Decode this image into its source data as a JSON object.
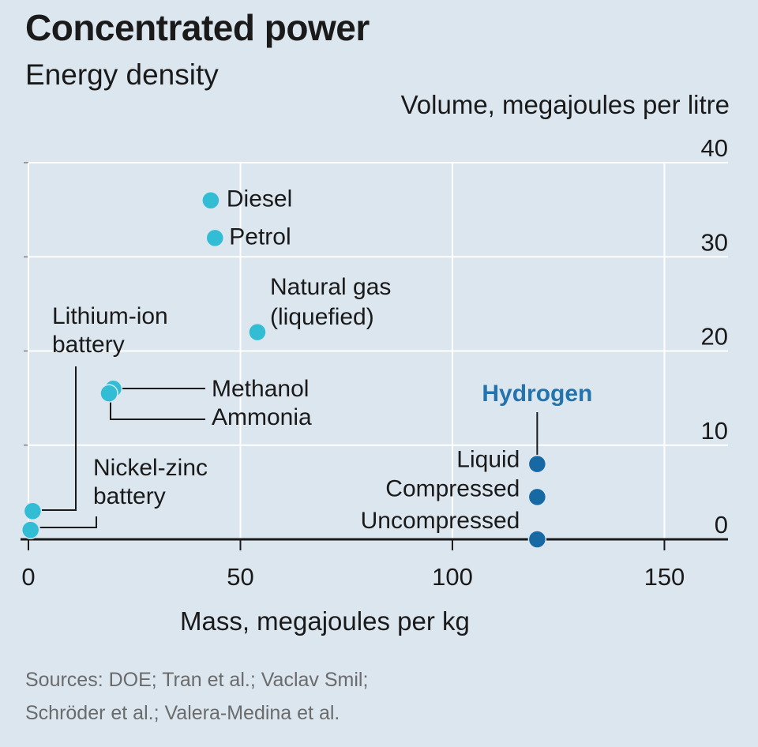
{
  "title": "Concentrated power",
  "subtitle": "Energy density",
  "source_lines": [
    "Sources: DOE; Tran et al.; Vaclav Smil;",
    "Schröder et al.; Valera-Medina et al."
  ],
  "colors": {
    "background": "#dbe6ef",
    "grid": "#ffffff",
    "axis": "#1a1a1a",
    "other_points": "#33bdd4",
    "hydrogen_points": "#1769a3",
    "hydrogen_label": "#2473ad",
    "source_text": "#6b6b6b"
  },
  "chart_data": {
    "type": "scatter",
    "xlabel": "Mass, megajoules per kg",
    "ylabel": "Volume, megajoules per litre",
    "xlim": [
      0,
      165
    ],
    "ylim": [
      0,
      40
    ],
    "x_ticks": [
      0,
      50,
      100,
      150
    ],
    "y_ticks": [
      0,
      10,
      20,
      30,
      40
    ],
    "grid": true,
    "group_label": "Hydrogen",
    "points": [
      {
        "label": "Diesel",
        "x": 43,
        "y": 36,
        "group": "other"
      },
      {
        "label": "Petrol",
        "x": 44,
        "y": 32,
        "group": "other"
      },
      {
        "label": "Natural gas (liquefied)",
        "x": 54,
        "y": 22,
        "group": "other"
      },
      {
        "label": "Methanol",
        "x": 20,
        "y": 16,
        "group": "other"
      },
      {
        "label": "Ammonia",
        "x": 19,
        "y": 15.5,
        "group": "other"
      },
      {
        "label": "Lithium-ion battery",
        "x": 1,
        "y": 3,
        "group": "other"
      },
      {
        "label": "Nickel-zinc battery",
        "x": 0.5,
        "y": 1,
        "group": "other"
      },
      {
        "label": "Liquid",
        "x": 120,
        "y": 8,
        "group": "hydrogen"
      },
      {
        "label": "Compressed",
        "x": 120,
        "y": 4.5,
        "group": "hydrogen"
      },
      {
        "label": "Uncompressed",
        "x": 120,
        "y": 0,
        "group": "hydrogen"
      }
    ]
  }
}
